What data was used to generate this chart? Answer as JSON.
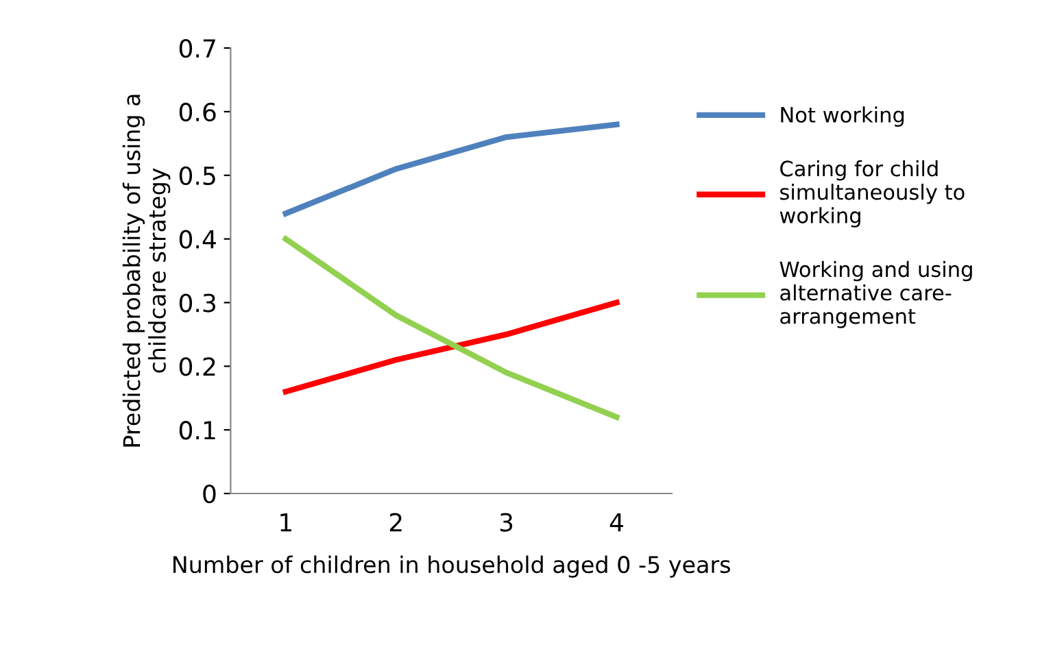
{
  "chart_data": {
    "type": "line",
    "xlabel": "Number of children in household aged 0 -5 years",
    "ylabel": "Predicted probability of using a\nchildcare strategy",
    "categories": [
      "1",
      "2",
      "3",
      "4"
    ],
    "series": [
      {
        "name": "Not working",
        "color": "#4f81bd",
        "values": [
          0.44,
          0.51,
          0.56,
          0.58
        ]
      },
      {
        "name": "Caring for child\nsimultaneously to\nworking",
        "color": "#ff0000",
        "values": [
          0.16,
          0.21,
          0.25,
          0.3
        ]
      },
      {
        "name": "Working and using\nalternative care-\narrangement",
        "color": "#92d050",
        "values": [
          0.4,
          0.28,
          0.19,
          0.12
        ]
      }
    ],
    "ylim": [
      0,
      0.7
    ],
    "yticks": [
      {
        "value": 0,
        "label": "0"
      },
      0.1,
      0.2,
      0.3,
      0.4,
      0.5,
      0.6,
      0.7
    ],
    "grid": false,
    "legend": "right",
    "marker": "none",
    "line_style": "solid"
  }
}
